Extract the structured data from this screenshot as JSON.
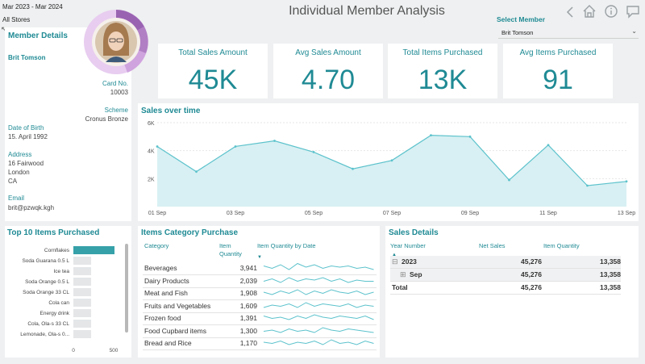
{
  "filters": {
    "date_range": "Mar 2023 - Mar 2024",
    "store": "All Stores"
  },
  "page_title": "Individual Member Analysis",
  "select_member": {
    "label": "Select Member",
    "value": "Brit Tomson"
  },
  "icons": {
    "back": "chevron-left-icon",
    "home": "home-icon",
    "info": "info-icon",
    "chat": "chat-icon"
  },
  "member": {
    "section_title": "Member Details",
    "name": "Brit Tomson",
    "card_label": "Card No.",
    "card_value": "10003",
    "scheme_label": "Scheme",
    "scheme_value": "Cronus Bronze",
    "dob_label": "Date of Birth",
    "dob_value": "15. April 1992",
    "address_label": "Address",
    "address_lines": [
      "16 Fairwood",
      "London",
      "CA"
    ],
    "email_label": "Email",
    "email_value": "brit@pzwqk.kgh"
  },
  "kpis": [
    {
      "title": "Total Sales Amount",
      "value": "45K"
    },
    {
      "title": "Avg Sales Amount",
      "value": "4.70"
    },
    {
      "title": "Total Items Purchased",
      "value": "13K"
    },
    {
      "title": "Avg Items Purchased",
      "value": "91"
    }
  ],
  "colors": {
    "accent": "#1f8a94",
    "line": "#5cc2cc",
    "area": "#d8f0f3",
    "bar": "#36a1a9",
    "bar_rest": "#e4e6e8",
    "donut": [
      "#b07fc4",
      "#cfa3de",
      "#e8cdf0",
      "#9a63b2"
    ]
  },
  "chart_data": [
    {
      "type": "area",
      "title": "Sales over time",
      "x": [
        "01 Sep",
        "02 Sep",
        "03 Sep",
        "04 Sep",
        "05 Sep",
        "06 Sep",
        "07 Sep",
        "08 Sep",
        "09 Sep",
        "10 Sep",
        "11 Sep",
        "12 Sep",
        "13 Sep"
      ],
      "xticks": [
        "01 Sep",
        "03 Sep",
        "05 Sep",
        "07 Sep",
        "09 Sep",
        "11 Sep",
        "13 Sep"
      ],
      "values": [
        4300,
        2500,
        4300,
        4700,
        3900,
        2700,
        3300,
        5100,
        5000,
        1900,
        4400,
        1500,
        1800
      ],
      "yticks": [
        "2K",
        "4K",
        "6K"
      ],
      "ylim": [
        0,
        6000
      ],
      "grid": true
    },
    {
      "type": "bar",
      "orientation": "horizontal",
      "title": "Top 10 Items Purchased",
      "categories": [
        "Cornflakes",
        "Soda Guarana 0.5 L",
        "Ice tea",
        "Soda Orange 0.5 L",
        "Soda Orange 33 CL",
        "Cola can",
        "Energy drink",
        "Cola, Ola-s 33 CL",
        "Lemonade, Ola-s 0..."
      ],
      "values": [
        510,
        220,
        220,
        220,
        220,
        220,
        220,
        220,
        220
      ],
      "xticks": [
        "0",
        "500"
      ],
      "xlim": [
        0,
        550
      ]
    }
  ],
  "category_table": {
    "title": "Items Category Purchase",
    "headers": {
      "category": "Category",
      "qty": "Item Quantity",
      "spark": "Item Quantity by Date"
    },
    "rows": [
      {
        "category": "Beverages",
        "qty": "3,941"
      },
      {
        "category": "Dairy Products",
        "qty": "2,039"
      },
      {
        "category": "Meat and Fish",
        "qty": "1,908"
      },
      {
        "category": "Fruits and Vegetables",
        "qty": "1,609"
      },
      {
        "category": "Frozen food",
        "qty": "1,391"
      },
      {
        "category": "Food Cupbard items",
        "qty": "1,300"
      },
      {
        "category": "Bread and Rice",
        "qty": "1,170"
      }
    ]
  },
  "sales_details": {
    "title": "Sales Details",
    "headers": {
      "year": "Year Number",
      "net": "Net Sales",
      "qty": "Item Quantity"
    },
    "rows": [
      {
        "label": "2023",
        "toggle": "⊟",
        "net": "45,276",
        "qty": "13,358"
      },
      {
        "label": "Sep",
        "toggle": "⊞",
        "net": "45,276",
        "qty": "13,358"
      },
      {
        "label": "Total",
        "toggle": "",
        "net": "45,276",
        "qty": "13,358"
      }
    ]
  }
}
